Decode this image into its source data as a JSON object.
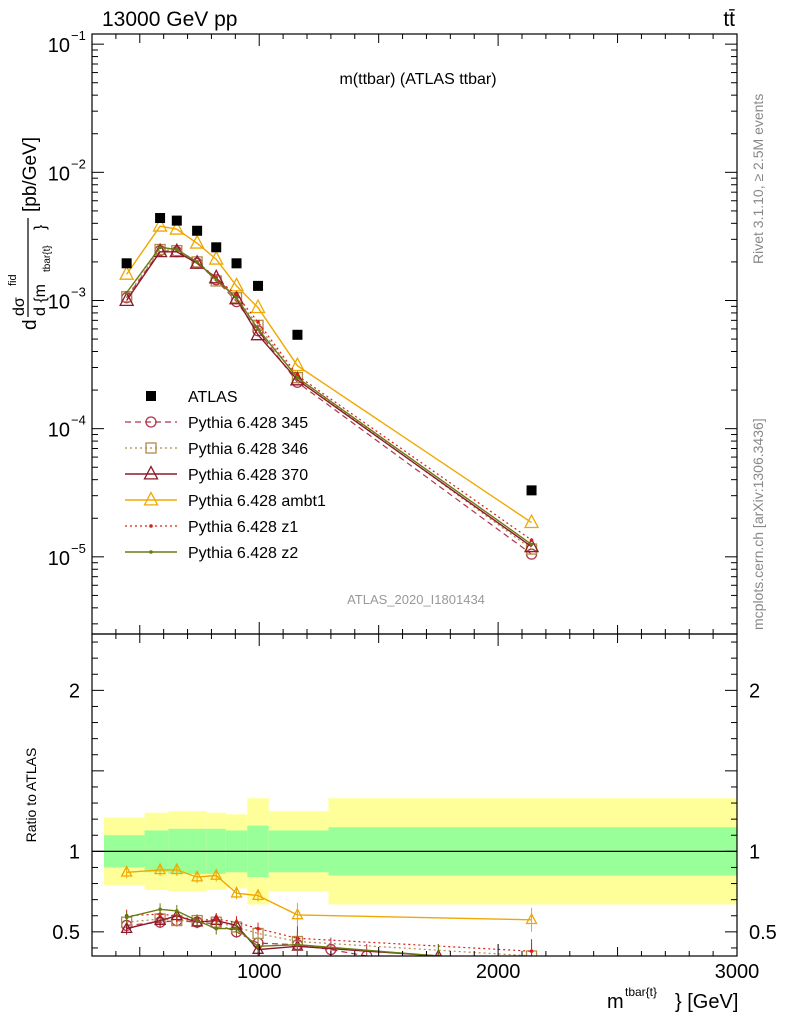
{
  "header": {
    "left": "13000 GeV pp",
    "right": "tt̄"
  },
  "side_labels": {
    "rivet": "Rivet 3.1.10, ≥ 2.5M events",
    "mcplots": "mcplots.cern.ch [arXiv:1306.3436]"
  },
  "chart_data": [
    {
      "type": "scatter",
      "panel": "main",
      "title": "m(ttbar) (ATLAS ttbar)",
      "watermark": "ATLAS_2020_I1801434",
      "ylabel": {
        "numerator": "dσ",
        "superscript": "fid",
        "denominator": "d {m",
        "subscript": "tbar{t}",
        "closing": "}",
        "units": "[pb/GeV]",
        "prefix": "d"
      },
      "yscale": "log",
      "xlim": [
        300,
        3000
      ],
      "ylim": [
        2.5e-06,
        0.12
      ],
      "ytick_labels": [
        {
          "value": 0.1,
          "base": "10",
          "exp": "−1"
        },
        {
          "value": 0.01,
          "base": "10",
          "exp": "−2"
        },
        {
          "value": 0.001,
          "base": "10",
          "exp": "−3"
        },
        {
          "value": 0.0001,
          "base": "10",
          "exp": "−4"
        },
        {
          "value": 1e-05,
          "base": "10",
          "exp": "−5"
        }
      ],
      "legend_position": "left-middle",
      "data": {
        "name": "ATLAS",
        "color": "#000000",
        "x": [
          445,
          585,
          655,
          740,
          820,
          905,
          995,
          1160,
          2140
        ],
        "y": [
          0.00195,
          0.0044,
          0.0042,
          0.0035,
          0.0026,
          0.00195,
          0.0013,
          0.00054,
          3.3e-05
        ]
      },
      "series": [
        {
          "name": "Pythia 6.428 345",
          "color": "#b2344a",
          "style": "dashed",
          "marker": "circle",
          "x": [
            445,
            585,
            655,
            740,
            820,
            905,
            995,
            1160,
            2140
          ],
          "y": [
            0.00105,
            0.00245,
            0.0024,
            0.00195,
            0.00145,
            0.00098,
            0.00058,
            0.00023,
            1.05e-05
          ]
        },
        {
          "name": "Pythia 6.428 346",
          "color": "#b28a4a",
          "style": "dotted",
          "marker": "square",
          "x": [
            445,
            585,
            655,
            740,
            820,
            905,
            995,
            1160,
            2140
          ],
          "y": [
            0.00107,
            0.0025,
            0.00245,
            0.002,
            0.00142,
            0.00105,
            0.00064,
            0.00025,
            1.15e-05
          ]
        },
        {
          "name": "Pythia 6.428 370",
          "color": "#8b1a2b",
          "style": "solid",
          "marker": "triangle",
          "x": [
            445,
            585,
            655,
            740,
            820,
            905,
            995,
            1160,
            2140
          ],
          "y": [
            0.001,
            0.0024,
            0.0024,
            0.00195,
            0.0015,
            0.00103,
            0.00054,
            0.00024,
            1.2e-05
          ]
        },
        {
          "name": "Pythia 6.428 ambt1",
          "color": "#f0a800",
          "style": "solid",
          "marker": "triangle",
          "x": [
            445,
            585,
            655,
            740,
            820,
            905,
            995,
            1160,
            2140
          ],
          "y": [
            0.0016,
            0.0038,
            0.0036,
            0.0028,
            0.0021,
            0.0013,
            0.00088,
            0.00031,
            1.85e-05
          ]
        },
        {
          "name": "Pythia 6.428 z1",
          "color": "#d91e18",
          "style": "dotted",
          "marker": "dot",
          "x": [
            445,
            585,
            655,
            740,
            820,
            905,
            995,
            1160,
            2140
          ],
          "y": [
            0.00115,
            0.0026,
            0.0025,
            0.002,
            0.0015,
            0.0011,
            0.00068,
            0.00026,
            1.35e-05
          ]
        },
        {
          "name": "Pythia 6.428 z2",
          "color": "#6b7a12",
          "style": "solid",
          "marker": "dot",
          "x": [
            445,
            585,
            655,
            740,
            820,
            905,
            995,
            1160,
            2140
          ],
          "y": [
            0.00115,
            0.0026,
            0.0025,
            0.002,
            0.00145,
            0.00105,
            0.0006,
            0.00025,
            1.25e-05
          ]
        }
      ]
    },
    {
      "type": "line",
      "panel": "ratio",
      "ylabel": "Ratio to ATLAS",
      "xlabel": {
        "base": "m",
        "superscript": "tbar{t}",
        "tail": "} [GeV]"
      },
      "xlim": [
        300,
        3000
      ],
      "ylim": [
        0.35,
        2.35
      ],
      "xtick_labels": [
        {
          "value": 1000,
          "label": "1000"
        },
        {
          "value": 2000,
          "label": "2000"
        },
        {
          "value": 3000,
          "label": "3000"
        }
      ],
      "ytick_labels": [
        {
          "value": 0.5,
          "label": "0.5"
        },
        {
          "value": 1,
          "label": "1"
        },
        {
          "value": 2,
          "label": "2"
        }
      ],
      "bands": {
        "edges": [
          350,
          520,
          620,
          700,
          780,
          860,
          950,
          1040,
          1290,
          3000
        ],
        "stat_lo": [
          0.9,
          0.87,
          0.86,
          0.86,
          0.86,
          0.87,
          0.84,
          0.87,
          0.85
        ],
        "stat_hi": [
          1.1,
          1.13,
          1.14,
          1.14,
          1.14,
          1.13,
          1.16,
          1.13,
          1.15
        ],
        "total_lo": [
          0.79,
          0.76,
          0.75,
          0.75,
          0.76,
          0.77,
          0.67,
          0.75,
          0.67
        ],
        "total_hi": [
          1.21,
          1.24,
          1.25,
          1.25,
          1.24,
          1.23,
          1.33,
          1.25,
          1.33
        ]
      },
      "series": [
        {
          "name": "Pythia 6.428 345",
          "color": "#b2344a",
          "style": "dashed",
          "marker": "circle",
          "x": [
            445,
            585,
            655,
            740,
            820,
            905,
            995,
            1160,
            1300,
            1450
          ],
          "y": [
            0.54,
            0.56,
            0.57,
            0.56,
            0.55,
            0.5,
            0.43,
            0.42,
            0.39,
            0.35
          ]
        },
        {
          "name": "Pythia 6.428 346",
          "color": "#b28a4a",
          "style": "dotted",
          "marker": "square",
          "x": [
            445,
            585,
            655,
            740,
            820,
            905,
            995,
            1160,
            2140
          ],
          "y": [
            0.56,
            0.58,
            0.57,
            0.57,
            0.56,
            0.53,
            0.49,
            0.44,
            0.35
          ]
        },
        {
          "name": "Pythia 6.428 370",
          "color": "#8b1a2b",
          "style": "solid",
          "marker": "triangle",
          "x": [
            445,
            585,
            655,
            740,
            820,
            905,
            995,
            1160,
            1750
          ],
          "y": [
            0.52,
            0.57,
            0.6,
            0.56,
            0.57,
            0.54,
            0.39,
            0.41,
            0.35
          ]
        },
        {
          "name": "Pythia 6.428 ambt1",
          "color": "#f0a800",
          "style": "solid",
          "marker": "triangle",
          "x": [
            445,
            585,
            655,
            740,
            820,
            905,
            995,
            1160,
            2140
          ],
          "y": [
            0.87,
            0.885,
            0.885,
            0.84,
            0.85,
            0.74,
            0.725,
            0.605,
            0.575
          ]
        },
        {
          "name": "Pythia 6.428 z1",
          "color": "#d91e18",
          "style": "dotted",
          "marker": "dot",
          "x": [
            445,
            585,
            655,
            740,
            820,
            905,
            995,
            1160,
            2140
          ],
          "y": [
            0.6,
            0.61,
            0.6,
            0.57,
            0.58,
            0.56,
            0.52,
            0.46,
            0.38
          ]
        },
        {
          "name": "Pythia 6.428 z2",
          "color": "#6b7a12",
          "style": "solid",
          "marker": "dot",
          "x": [
            445,
            585,
            655,
            740,
            820,
            905,
            995,
            1160,
            1750
          ],
          "y": [
            0.59,
            0.64,
            0.63,
            0.57,
            0.52,
            0.52,
            0.41,
            0.42,
            0.35
          ]
        }
      ]
    }
  ]
}
